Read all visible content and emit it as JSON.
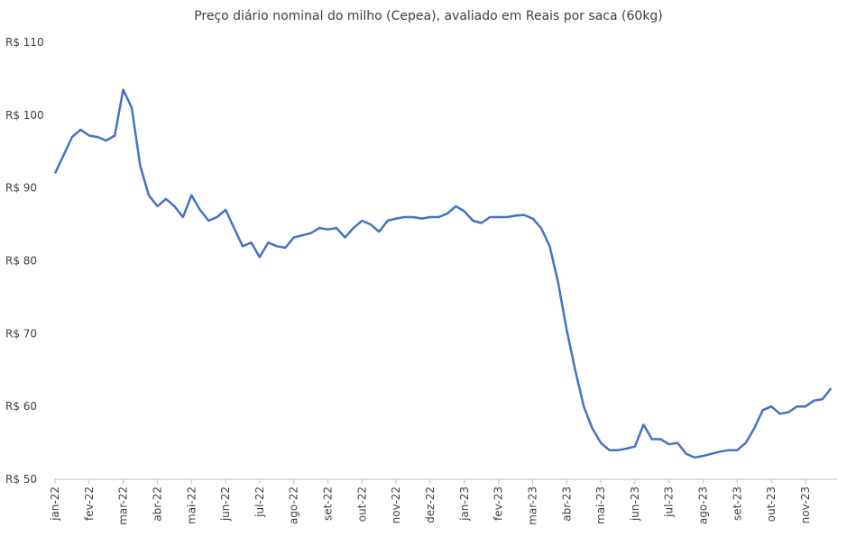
{
  "chart_data": {
    "type": "line",
    "title": "Preço diário nominal do milho (Cepea), avaliado em Reais por saca (60kg)",
    "categories": [
      "jan-22",
      null,
      null,
      null,
      "fev-22",
      null,
      null,
      null,
      "mar-22",
      null,
      null,
      null,
      "abr-22",
      null,
      null,
      null,
      "mai-22",
      null,
      null,
      null,
      "jun-22",
      null,
      null,
      null,
      "jul-22",
      null,
      null,
      null,
      "ago-22",
      null,
      null,
      null,
      "set-22",
      null,
      null,
      null,
      "out-22",
      null,
      null,
      null,
      "nov-22",
      null,
      null,
      null,
      "dez-22",
      null,
      null,
      null,
      "jan-23",
      null,
      null,
      null,
      "fev-23",
      null,
      null,
      null,
      "mar-23",
      null,
      null,
      null,
      "abr-23",
      null,
      null,
      null,
      "mai-23",
      null,
      null,
      null,
      "jun-23",
      null,
      null,
      null,
      "jul-23",
      null,
      null,
      null,
      "ago-23",
      null,
      null,
      null,
      "set-23",
      null,
      null,
      null,
      "out-23",
      null,
      null,
      null,
      "nov-23",
      null,
      null,
      null
    ],
    "series": [
      {
        "name": "Preço",
        "color": "#4472c4",
        "values": [
          92,
          94.5,
          97,
          98,
          97.2,
          97,
          96.5,
          97.2,
          103.5,
          101,
          93,
          89,
          87.5,
          88.5,
          87.5,
          86,
          89,
          87,
          85.5,
          86,
          87,
          84.5,
          82,
          82.5,
          80.5,
          82.5,
          82,
          81.8,
          83.2,
          83.5,
          83.8,
          84.5,
          84.3,
          84.5,
          83.2,
          84.5,
          85.5,
          85,
          84,
          85.5,
          85.8,
          86,
          86,
          85.8,
          86,
          86,
          86.5,
          87.5,
          86.8,
          85.5,
          85.2,
          86,
          86,
          86,
          86.2,
          86.3,
          85.8,
          84.5,
          82,
          77,
          70.5,
          65,
          60,
          57,
          55,
          54,
          54,
          54.2,
          54.5,
          57.5,
          55.5,
          55.5,
          54.8,
          55,
          53.5,
          53,
          53.2,
          53.5,
          53.8,
          54,
          54,
          55,
          57,
          59.5,
          60,
          59,
          59.2,
          60,
          60,
          60.8,
          61,
          62.5
        ]
      }
    ],
    "ylim": [
      50,
      110
    ],
    "yticks": [
      {
        "value": 50,
        "label": "R$ 50"
      },
      {
        "value": 60,
        "label": "R$ 60"
      },
      {
        "value": 70,
        "label": "R$ 70"
      },
      {
        "value": 80,
        "label": "R$ 80"
      },
      {
        "value": 90,
        "label": "R$ 90"
      },
      {
        "value": 100,
        "label": "R$ 100"
      },
      {
        "value": 110,
        "label": "R$ 110"
      }
    ],
    "grid": false
  }
}
